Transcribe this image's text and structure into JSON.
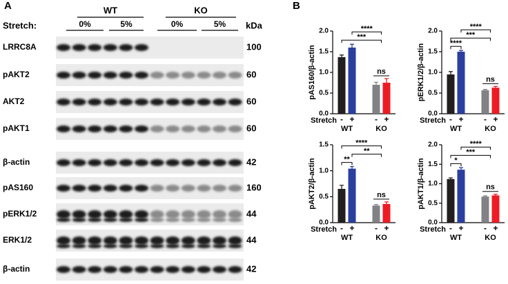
{
  "panel_labels": [
    "A",
    "B"
  ],
  "blot": {
    "stretch_label": "Stretch:",
    "groups": [
      "WT",
      "KO"
    ],
    "conditions": [
      "0%",
      "5%",
      "0%",
      "5%"
    ],
    "kda_label": "kDa",
    "rows": [
      {
        "label": "LRRC8A",
        "kda": 100
      },
      {
        "label": "pAKT2",
        "kda": 60
      },
      {
        "label": "AKT2",
        "kda": 60
      },
      {
        "label": "pAKT1",
        "kda": 60
      },
      {
        "label": "β-actin",
        "kda": 42
      },
      {
        "label": "pAS160",
        "kda": 160
      },
      {
        "label": "pERK1/2",
        "kda": 44
      },
      {
        "label": "ERK1/2",
        "kda": 44
      },
      {
        "label": "β-actin",
        "kda": 42
      }
    ]
  },
  "chart_data": [
    {
      "type": "bar",
      "ylabel": "pAS160/β-actin",
      "x_label": "Stretch",
      "categories": [
        "-",
        "+",
        "-",
        "+"
      ],
      "groups": [
        "WT",
        "KO"
      ],
      "values": [
        1.37,
        1.6,
        0.7,
        0.75
      ],
      "errors": [
        0.05,
        0.08,
        0.06,
        0.1
      ],
      "colors": [
        "#231f20",
        "#2b3f9e",
        "#808285",
        "#ed1c24"
      ],
      "ylim": [
        0,
        2
      ],
      "yticks": [
        {
          "value": 0,
          "label": "0.0"
        },
        {
          "value": 0.5,
          "label": "0.5"
        },
        {
          "value": 1,
          "label": "1.0"
        },
        {
          "value": 1.5,
          "label": "1.5"
        },
        {
          "value": 2,
          "label": "2.0"
        }
      ],
      "annotations": [
        "***",
        "****",
        "ns"
      ]
    },
    {
      "type": "bar",
      "ylabel": "pERK1/2/β-actin",
      "x_label": "Stretch",
      "categories": [
        "-",
        "+",
        "-",
        "+"
      ],
      "groups": [
        "WT",
        "KO"
      ],
      "values": [
        0.95,
        1.5,
        0.57,
        0.63
      ],
      "errors": [
        0.07,
        0.03,
        0.02,
        0.03
      ],
      "colors": [
        "#231f20",
        "#2b3f9e",
        "#808285",
        "#ed1c24"
      ],
      "ylim": [
        0,
        2
      ],
      "yticks": [
        {
          "value": 0,
          "label": "0.0"
        },
        {
          "value": 0.5,
          "label": "0.5"
        },
        {
          "value": 1,
          "label": "1.0"
        },
        {
          "value": 1.5,
          "label": "1.5"
        },
        {
          "value": 2,
          "label": "2.0"
        }
      ],
      "annotations": [
        "****",
        "***",
        "****",
        "ns"
      ]
    },
    {
      "type": "bar",
      "ylabel": "pAKT2/β-actin",
      "x_label": "Stretch",
      "categories": [
        "-",
        "+",
        "-",
        "+"
      ],
      "groups": [
        "WT",
        "KO"
      ],
      "values": [
        0.65,
        1.04,
        0.33,
        0.36
      ],
      "errors": [
        0.07,
        0.04,
        0.02,
        0.04
      ],
      "colors": [
        "#231f20",
        "#2b3f9e",
        "#808285",
        "#ed1c24"
      ],
      "ylim": [
        0,
        1.5
      ],
      "yticks": [
        {
          "value": 0,
          "label": "0.0"
        },
        {
          "value": 0.5,
          "label": "0.5"
        },
        {
          "value": 1,
          "label": "1.0"
        },
        {
          "value": 1.5,
          "label": "1.5"
        }
      ],
      "annotations": [
        "**",
        "**",
        "****",
        "ns"
      ]
    },
    {
      "type": "bar",
      "ylabel": "pAKT1/β-actin",
      "x_label": "Stretch",
      "categories": [
        "-",
        "+",
        "-",
        "+"
      ],
      "groups": [
        "WT",
        "KO"
      ],
      "values": [
        1.12,
        1.36,
        0.67,
        0.7
      ],
      "errors": [
        0.03,
        0.05,
        0.02,
        0.03
      ],
      "colors": [
        "#231f20",
        "#2b3f9e",
        "#808285",
        "#ed1c24"
      ],
      "ylim": [
        0,
        2
      ],
      "yticks": [
        {
          "value": 0,
          "label": "0.0"
        },
        {
          "value": 0.5,
          "label": "0.5"
        },
        {
          "value": 1,
          "label": "1.0"
        },
        {
          "value": 1.5,
          "label": "1.5"
        },
        {
          "value": 2,
          "label": "2.0"
        }
      ],
      "annotations": [
        "*",
        "***",
        "****",
        "ns"
      ]
    }
  ]
}
